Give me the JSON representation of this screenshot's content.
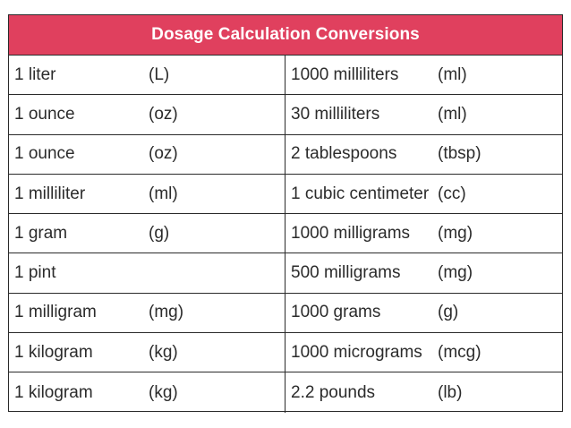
{
  "title": "Dosage Calculation Conversions",
  "rows": [
    {
      "left_qty": "1 liter",
      "left_unit": "(L)",
      "right_qty": "1000 milliliters",
      "right_unit": "(ml)"
    },
    {
      "left_qty": "1 ounce",
      "left_unit": "(oz)",
      "right_qty": "30 milliliters",
      "right_unit": "(ml)"
    },
    {
      "left_qty": "1 ounce",
      "left_unit": "(oz)",
      "right_qty": "2 tablespoons",
      "right_unit": "(tbsp)"
    },
    {
      "left_qty": "1 milliliter",
      "left_unit": "(ml)",
      "right_qty": "1 cubic centimeter",
      "right_unit": "(cc)"
    },
    {
      "left_qty": "1 gram",
      "left_unit": "(g)",
      "right_qty": "1000 milligrams",
      "right_unit": "(mg)"
    },
    {
      "left_qty": "1 pint",
      "left_unit": "",
      "right_qty": "500 milligrams",
      "right_unit": "(mg)"
    },
    {
      "left_qty": "1 milligram",
      "left_unit": "(mg)",
      "right_qty": "1000 grams",
      "right_unit": "(g)"
    },
    {
      "left_qty": "1 kilogram",
      "left_unit": "(kg)",
      "right_qty": "1000 micrograms",
      "right_unit": "(mcg)"
    },
    {
      "left_qty": "1 kilogram",
      "left_unit": "(kg)",
      "right_qty": "2.2 pounds",
      "right_unit": "(lb)"
    }
  ],
  "colors": {
    "header_bg": "#e0405e",
    "header_text": "#ffffff",
    "border": "#2a2a2a"
  }
}
